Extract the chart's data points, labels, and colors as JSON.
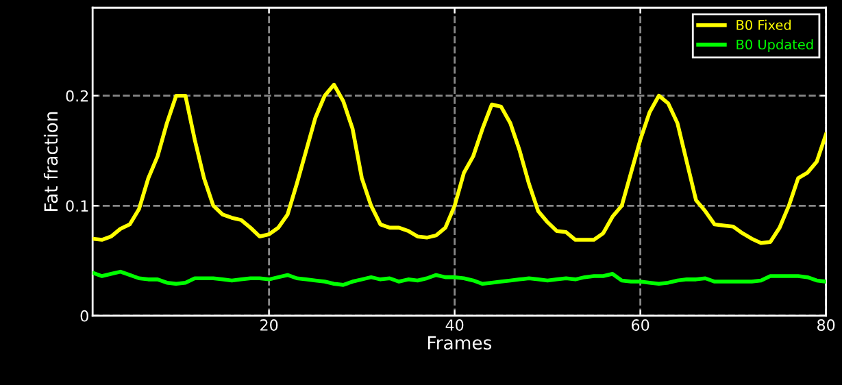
{
  "chart_data": {
    "type": "line",
    "xlabel": "Frames",
    "ylabel": "Fat fraction",
    "x": [
      1,
      2,
      3,
      4,
      5,
      6,
      7,
      8,
      9,
      10,
      11,
      12,
      13,
      14,
      15,
      16,
      17,
      18,
      19,
      20,
      21,
      22,
      23,
      24,
      25,
      26,
      27,
      28,
      29,
      30,
      31,
      32,
      33,
      34,
      35,
      36,
      37,
      38,
      39,
      40,
      41,
      42,
      43,
      44,
      45,
      46,
      47,
      48,
      49,
      50,
      51,
      52,
      53,
      54,
      55,
      56,
      57,
      58,
      59,
      60,
      61,
      62,
      63,
      64,
      65,
      66,
      67,
      68,
      69,
      70,
      71,
      72,
      73,
      74,
      75,
      76,
      77,
      78,
      79,
      80
    ],
    "series": [
      {
        "name": "B0 Fixed",
        "color": "#ffff00",
        "values": [
          0.07,
          0.069,
          0.072,
          0.079,
          0.083,
          0.097,
          0.125,
          0.145,
          0.175,
          0.2,
          0.2,
          0.16,
          0.125,
          0.1,
          0.092,
          0.089,
          0.087,
          0.08,
          0.072,
          0.074,
          0.08,
          0.092,
          0.12,
          0.15,
          0.18,
          0.2,
          0.21,
          0.195,
          0.17,
          0.125,
          0.1,
          0.083,
          0.08,
          0.08,
          0.077,
          0.072,
          0.071,
          0.073,
          0.08,
          0.1,
          0.13,
          0.145,
          0.17,
          0.192,
          0.19,
          0.175,
          0.15,
          0.12,
          0.095,
          0.085,
          0.077,
          0.076,
          0.069,
          0.069,
          0.069,
          0.075,
          0.09,
          0.1,
          0.13,
          0.16,
          0.185,
          0.2,
          0.193,
          0.175,
          0.14,
          0.105,
          0.095,
          0.083,
          0.082,
          0.081,
          0.075,
          0.07,
          0.066,
          0.067,
          0.08,
          0.1,
          0.125,
          0.13,
          0.14,
          0.165
        ]
      },
      {
        "name": "B0 Updated",
        "color": "#00ff00",
        "values": [
          0.039,
          0.036,
          0.038,
          0.04,
          0.037,
          0.034,
          0.033,
          0.033,
          0.03,
          0.029,
          0.03,
          0.034,
          0.034,
          0.034,
          0.033,
          0.032,
          0.033,
          0.034,
          0.034,
          0.033,
          0.035,
          0.037,
          0.034,
          0.033,
          0.032,
          0.031,
          0.029,
          0.028,
          0.031,
          0.033,
          0.035,
          0.033,
          0.034,
          0.031,
          0.033,
          0.032,
          0.034,
          0.037,
          0.035,
          0.035,
          0.034,
          0.032,
          0.029,
          0.03,
          0.031,
          0.032,
          0.033,
          0.034,
          0.033,
          0.032,
          0.033,
          0.034,
          0.033,
          0.035,
          0.036,
          0.036,
          0.038,
          0.032,
          0.031,
          0.031,
          0.03,
          0.029,
          0.03,
          0.032,
          0.033,
          0.033,
          0.034,
          0.031,
          0.031,
          0.031,
          0.031,
          0.031,
          0.032,
          0.036,
          0.036,
          0.036,
          0.036,
          0.035,
          0.032,
          0.031
        ]
      }
    ],
    "xlim": [
      1,
      80
    ],
    "ylim": [
      0,
      0.28
    ],
    "xticks": [
      20,
      40,
      60,
      80
    ],
    "yticks": [
      0,
      0.1,
      0.2
    ],
    "grid": true,
    "legend": "top right",
    "line_style": "solid",
    "marker": "none"
  }
}
